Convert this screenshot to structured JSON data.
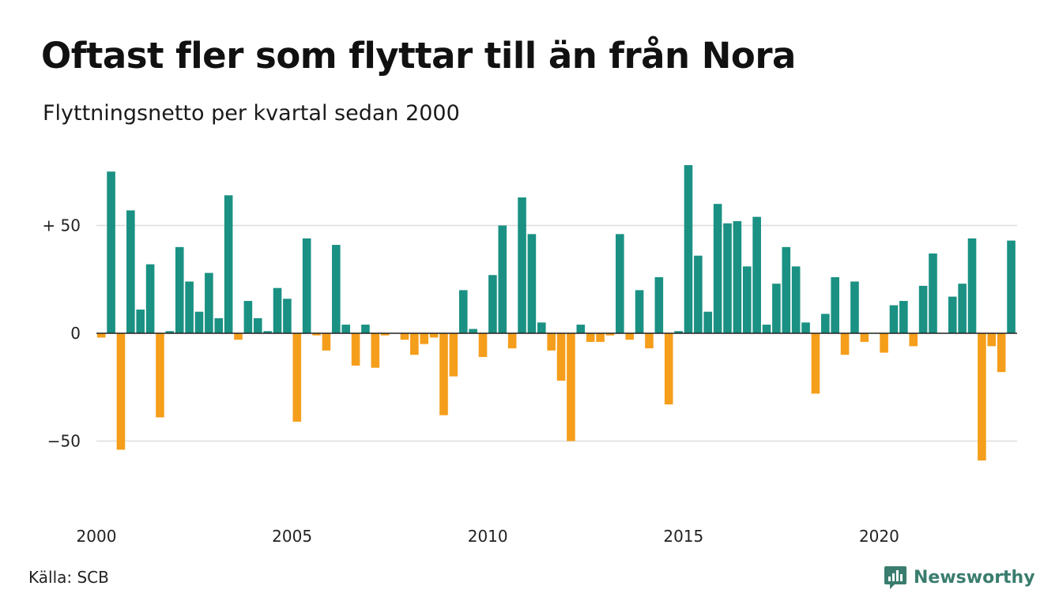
{
  "title": "Oftast fler som flyttar till än från Nora",
  "subtitle": "Flyttningsnetto per kvartal sedan 2000",
  "source": "Källa: SCB",
  "brand": {
    "name": "Newsworthy",
    "icon": "newsworthy-logo-icon"
  },
  "colors": {
    "positive": "#1a9183",
    "negative": "#f59e1b",
    "grid": "#dddddd",
    "baseline": "#222222"
  },
  "chart_data": {
    "type": "bar",
    "x_start_year": 2000,
    "periods_per_year": 4,
    "ylim": [
      -72,
      82
    ],
    "y_ticks": [
      {
        "value": 50,
        "label": "+ 50"
      },
      {
        "value": 0,
        "label": "0"
      },
      {
        "value": -50,
        "label": "−50"
      }
    ],
    "x_ticks": [
      {
        "year": 2000,
        "label": "2000"
      },
      {
        "year": 2005,
        "label": "2005"
      },
      {
        "year": 2010,
        "label": "2010"
      },
      {
        "year": 2015,
        "label": "2015"
      },
      {
        "year": 2020,
        "label": "2020"
      }
    ],
    "values": [
      -2,
      75,
      -54,
      57,
      11,
      32,
      -39,
      1,
      40,
      24,
      10,
      28,
      7,
      64,
      -3,
      15,
      7,
      1,
      21,
      16,
      -41,
      44,
      -1,
      -8,
      41,
      4,
      -15,
      4,
      -16,
      -1,
      0,
      -3,
      -10,
      -5,
      -2,
      -38,
      -20,
      20,
      2,
      -11,
      27,
      50,
      -7,
      63,
      46,
      5,
      -8,
      -22,
      -50,
      4,
      -4,
      -4,
      -1,
      46,
      -3,
      20,
      -7,
      26,
      -33,
      1,
      78,
      36,
      10,
      60,
      51,
      52,
      31,
      54,
      4,
      23,
      40,
      31,
      5,
      -28,
      9,
      26,
      -10,
      24,
      -4,
      0,
      -9,
      13,
      15,
      -6,
      22,
      37,
      0,
      17,
      23,
      44,
      -59,
      -6,
      -18,
      43
    ]
  }
}
